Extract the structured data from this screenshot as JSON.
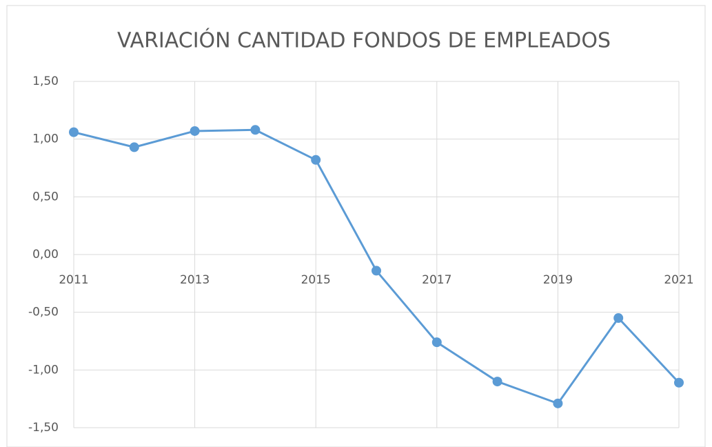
{
  "chart_data": {
    "type": "line",
    "title": "VARIACIÓN CANTIDAD FONDOS DE EMPLEADOS",
    "x": [
      2011,
      2012,
      2013,
      2014,
      2015,
      2016,
      2017,
      2018,
      2019,
      2020,
      2021
    ],
    "series": [
      {
        "name": "Variación",
        "color": "#5b9bd5",
        "values": [
          1.06,
          0.93,
          1.07,
          1.08,
          0.82,
          -0.14,
          -0.76,
          -1.1,
          -1.29,
          -0.55,
          -1.11
        ]
      }
    ],
    "xlim": [
      2011,
      2021
    ],
    "xticks": [
      2011,
      2013,
      2015,
      2017,
      2019,
      2021
    ],
    "ylim": [
      -1.5,
      1.5
    ],
    "yticks": [
      {
        "value": -1.5,
        "label": "-1,50"
      },
      {
        "value": -1.0,
        "label": "-1,00"
      },
      {
        "value": -0.5,
        "label": "-0,50"
      },
      {
        "value": 0,
        "label": "0,00"
      },
      {
        "value": 0.5,
        "label": "0,50"
      },
      {
        "value": 1.0,
        "label": "1,00"
      },
      {
        "value": 1.5,
        "label": "1,50"
      }
    ],
    "grid": true
  }
}
